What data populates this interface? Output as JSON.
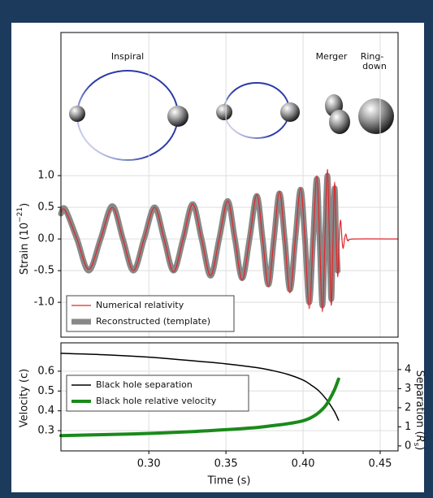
{
  "chart_data": [
    {
      "type": "line",
      "annotations": [
        "Inspiral",
        "Merger",
        "Ring-",
        "down"
      ],
      "ylabel": {
        "text": "Strain (10",
        "sup": "−21",
        "end": ")"
      },
      "xlim": [
        0.243,
        0.4616
      ],
      "ylim": [
        -1.55,
        3.26
      ],
      "yticks": [
        {
          "value": 1,
          "label": "1.0"
        },
        {
          "value": 0.5,
          "label": "0.5"
        },
        {
          "value": 0,
          "label": "0.0"
        },
        {
          "value": -0.5,
          "label": "-0.5"
        },
        {
          "value": -1,
          "label": "-1.0"
        }
      ],
      "grid": true,
      "legend": "lower-left",
      "x": [
        0.243,
        0.2458,
        0.2534,
        0.261,
        0.2687,
        0.2763,
        0.2832,
        0.29,
        0.2969,
        0.3037,
        0.3099,
        0.316,
        0.3222,
        0.3284,
        0.3342,
        0.34,
        0.3456,
        0.3511,
        0.3558,
        0.3605,
        0.3653,
        0.37,
        0.3738,
        0.3775,
        0.3811,
        0.3847,
        0.3881,
        0.3915,
        0.395,
        0.3984,
        0.4012,
        0.404,
        0.4065,
        0.4089,
        0.4107,
        0.4125,
        0.4142,
        0.4158,
        0.4171,
        0.4183,
        0.4194,
        0.4205,
        0.4215,
        0.4225,
        0.4234,
        0.4243,
        0.4252,
        0.426,
        0.4269,
        0.4277,
        0.4285,
        0.4293,
        0.433,
        0.4616
      ],
      "series": [
        {
          "name": "Reconstructed (template)",
          "color": "#888888",
          "width": 7,
          "values": [
            0.4,
            0.47,
            0,
            -0.5,
            0,
            0.52,
            0,
            -0.5,
            0,
            0.5,
            0,
            -0.5,
            0,
            0.55,
            0,
            -0.58,
            0,
            0.6,
            0,
            -0.62,
            0,
            0.68,
            0,
            -0.72,
            0,
            0.72,
            0,
            -0.8,
            0,
            0.78,
            0,
            -1.0,
            0,
            0.95,
            0,
            -1.05,
            0,
            1.0,
            0,
            -0.95,
            0,
            0.8,
            0,
            -0.5,
            null,
            null,
            null,
            null,
            null,
            null,
            null,
            null,
            null,
            null
          ]
        },
        {
          "name": "Numerical relativity",
          "color": "#e0262b",
          "width": 1.2,
          "values": [
            0.42,
            0.45,
            0,
            -0.48,
            0,
            0.5,
            0,
            -0.5,
            0,
            0.5,
            0,
            -0.52,
            0,
            0.55,
            0,
            -0.58,
            0,
            0.6,
            0,
            -0.65,
            0,
            0.7,
            0,
            -0.75,
            0,
            0.75,
            0,
            -0.85,
            0,
            0.8,
            0,
            -1.1,
            0,
            1.0,
            0,
            -1.15,
            0,
            1.1,
            0,
            -1.05,
            0,
            0.9,
            0,
            -0.6,
            0,
            0.3,
            0,
            -0.15,
            0,
            0.08,
            0,
            -0.03,
            0,
            0
          ]
        }
      ]
    },
    {
      "type": "line",
      "xlabel": "Time (s)",
      "ylabel": "Velocity (c)",
      "y2label": {
        "text": "Separation (",
        "italic": "R",
        "sub": "s",
        "end": ")"
      },
      "xlim": [
        0.243,
        0.4616
      ],
      "ylim": [
        0.198,
        0.743
      ],
      "y2lim": [
        -0.26,
        5.4
      ],
      "xticks": [
        {
          "value": 0.3,
          "label": "0.30"
        },
        0.35,
        {
          "value": 0.4,
          "label": "0.40"
        },
        0.45
      ],
      "yticks": [
        0.3,
        0.4,
        0.5,
        0.6
      ],
      "y2ticks": [
        0,
        1,
        2,
        3,
        4
      ],
      "grid": true,
      "legend": "upper-left",
      "x": [
        0.243,
        0.27,
        0.3,
        0.33,
        0.35,
        0.37,
        0.38,
        0.39,
        0.4,
        0.405,
        0.41,
        0.415,
        0.42,
        0.423
      ],
      "series": [
        {
          "name": "Black hole separation",
          "color": "#000000",
          "width": 1.5,
          "axis": "y2",
          "values": [
            4.85,
            4.78,
            4.65,
            4.45,
            4.3,
            4.1,
            3.95,
            3.75,
            3.45,
            3.2,
            2.9,
            2.45,
            1.85,
            1.35
          ]
        },
        {
          "name": "Black hole relative velocity",
          "color": "#1a8a1a",
          "width": 4,
          "values": [
            0.275,
            0.28,
            0.286,
            0.296,
            0.305,
            0.316,
            0.325,
            0.335,
            0.35,
            0.365,
            0.39,
            0.43,
            0.5,
            0.56
          ]
        }
      ]
    }
  ]
}
